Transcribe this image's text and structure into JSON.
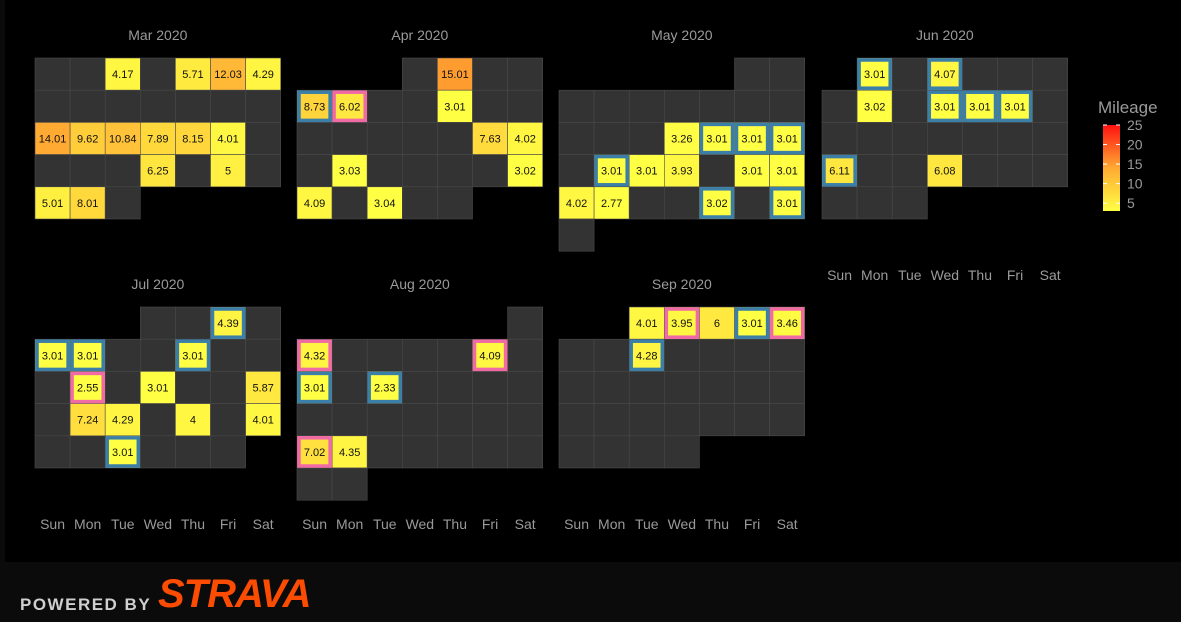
{
  "chart_data": {
    "type": "heatmap",
    "day_labels": [
      "Sun",
      "Mon",
      "Tue",
      "Wed",
      "Thu",
      "Fri",
      "Sat"
    ],
    "legend": {
      "title": "Mileage",
      "ticks": [
        5,
        10,
        15,
        20,
        25
      ],
      "range": [
        3,
        25
      ],
      "colors": [
        "#ffff44",
        "#ffaa33",
        "#ff1111"
      ]
    },
    "colors": {
      "blue_outline": "#3b7fa8",
      "pink_outline": "#f06aa6",
      "empty_cell": "#333333",
      "cell_border": "#4a4a4a",
      "label_text": "#9a9a9a"
    },
    "months": [
      {
        "title": "Mar 2020",
        "start_weekday": 0,
        "days": 31,
        "runs": [
          {
            "day": 3,
            "miles": 4.17
          },
          {
            "day": 5,
            "miles": 5.71
          },
          {
            "day": 6,
            "miles": 12.03
          },
          {
            "day": 7,
            "miles": 4.29
          },
          {
            "day": 15,
            "miles": 14.01
          },
          {
            "day": 16,
            "miles": 9.62
          },
          {
            "day": 17,
            "miles": 10.84
          },
          {
            "day": 18,
            "miles": 7.89
          },
          {
            "day": 19,
            "miles": 8.15
          },
          {
            "day": 20,
            "miles": 4.01
          },
          {
            "day": 25,
            "miles": 6.25
          },
          {
            "day": 27,
            "miles": 5
          },
          {
            "day": 29,
            "miles": 5.01
          },
          {
            "day": 30,
            "miles": 8.01
          }
        ]
      },
      {
        "title": "Apr 2020",
        "start_weekday": 3,
        "days": 30,
        "runs": [
          {
            "day": 2,
            "miles": 15.01
          },
          {
            "day": 5,
            "miles": 8.73,
            "outline": "blue"
          },
          {
            "day": 6,
            "miles": 6.02,
            "outline": "pink"
          },
          {
            "day": 9,
            "miles": 3.01
          },
          {
            "day": 17,
            "miles": 7.63
          },
          {
            "day": 18,
            "miles": 4.02
          },
          {
            "day": 20,
            "miles": 3.03
          },
          {
            "day": 25,
            "miles": 3.02
          },
          {
            "day": 26,
            "miles": 4.09
          },
          {
            "day": 28,
            "miles": 3.04
          }
        ]
      },
      {
        "title": "May 2020",
        "start_weekday": 5,
        "days": 31,
        "runs": [
          {
            "day": 13,
            "miles": 3.26
          },
          {
            "day": 14,
            "miles": 3.01,
            "outline": "blue"
          },
          {
            "day": 15,
            "miles": 3.01,
            "outline": "blue"
          },
          {
            "day": 16,
            "miles": 3.01,
            "outline": "blue"
          },
          {
            "day": 18,
            "miles": 3.01,
            "outline": "blue"
          },
          {
            "day": 19,
            "miles": 3.01
          },
          {
            "day": 20,
            "miles": 3.93
          },
          {
            "day": 22,
            "miles": 3.01
          },
          {
            "day": 23,
            "miles": 3.01
          },
          {
            "day": 24,
            "miles": 4.02
          },
          {
            "day": 25,
            "miles": 2.77
          },
          {
            "day": 28,
            "miles": 3.02,
            "outline": "blue"
          },
          {
            "day": 30,
            "miles": 3.01,
            "outline": "blue"
          }
        ]
      },
      {
        "title": "Jun 2020",
        "start_weekday": 1,
        "days": 30,
        "runs": [
          {
            "day": 1,
            "miles": 3.01,
            "outline": "blue"
          },
          {
            "day": 3,
            "miles": 4.07,
            "outline": "blue"
          },
          {
            "day": 8,
            "miles": 3.02
          },
          {
            "day": 10,
            "miles": 3.01,
            "outline": "blue"
          },
          {
            "day": 11,
            "miles": 3.01,
            "outline": "blue"
          },
          {
            "day": 12,
            "miles": 3.01,
            "outline": "blue"
          },
          {
            "day": 21,
            "miles": 6.11,
            "outline": "blue"
          },
          {
            "day": 24,
            "miles": 6.08
          }
        ]
      },
      {
        "title": "Jul 2020",
        "start_weekday": 3,
        "days": 31,
        "runs": [
          {
            "day": 3,
            "miles": 4.39,
            "outline": "blue"
          },
          {
            "day": 5,
            "miles": 3.01,
            "outline": "blue"
          },
          {
            "day": 6,
            "miles": 3.01,
            "outline": "blue"
          },
          {
            "day": 9,
            "miles": 3.01,
            "outline": "blue"
          },
          {
            "day": 13,
            "miles": 2.55,
            "outline": "pink"
          },
          {
            "day": 15,
            "miles": 3.01
          },
          {
            "day": 18,
            "miles": 5.87
          },
          {
            "day": 20,
            "miles": 7.24
          },
          {
            "day": 21,
            "miles": 4.29
          },
          {
            "day": 23,
            "miles": 4
          },
          {
            "day": 25,
            "miles": 4.01
          },
          {
            "day": 28,
            "miles": 3.01,
            "outline": "blue"
          }
        ]
      },
      {
        "title": "Aug 2020",
        "start_weekday": 6,
        "days": 31,
        "runs": [
          {
            "day": 2,
            "miles": 4.32,
            "outline": "pink"
          },
          {
            "day": 7,
            "miles": 4.09,
            "outline": "pink"
          },
          {
            "day": 9,
            "miles": 3.01,
            "outline": "blue"
          },
          {
            "day": 11,
            "miles": 2.33,
            "outline": "blue"
          },
          {
            "day": 23,
            "miles": 7.02,
            "outline": "pink"
          },
          {
            "day": 24,
            "miles": 4.35
          }
        ]
      },
      {
        "title": "Sep 2020",
        "start_weekday": 2,
        "days": 30,
        "runs": [
          {
            "day": 1,
            "miles": 4.01
          },
          {
            "day": 2,
            "miles": 3.95,
            "outline": "pink"
          },
          {
            "day": 3,
            "miles": 6
          },
          {
            "day": 4,
            "miles": 3.01,
            "outline": "blue"
          },
          {
            "day": 5,
            "miles": 3.46,
            "outline": "pink"
          },
          {
            "day": 8,
            "miles": 4.28,
            "outline": "blue"
          }
        ]
      }
    ]
  },
  "footer": {
    "powered_by": "POWERED BY",
    "brand": "STRAVA"
  }
}
